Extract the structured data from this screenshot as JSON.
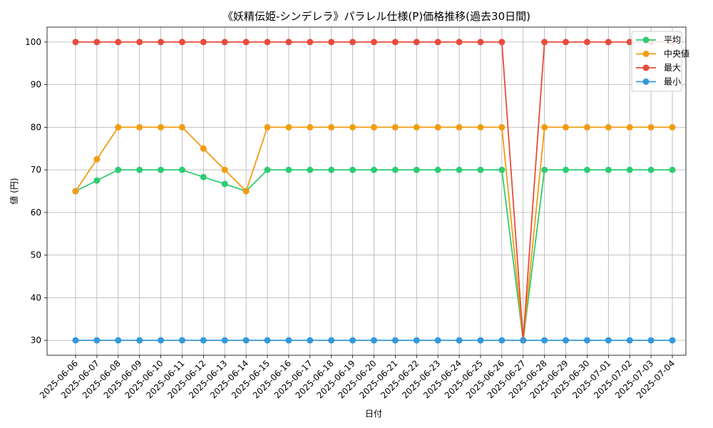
{
  "chart_data": {
    "type": "line",
    "title": "《妖精伝姫-シンデレラ》パラレル仕様(P)価格推移(過去30日間)",
    "xlabel": "日付",
    "ylabel": "値 (円)",
    "ylim": [
      26.5,
      103.5
    ],
    "yticks": [
      30,
      40,
      50,
      60,
      70,
      80,
      90,
      100
    ],
    "grid": true,
    "legend_position": "top-right",
    "x": [
      "2025-06-06",
      "2025-06-07",
      "2025-06-08",
      "2025-06-09",
      "2025-06-10",
      "2025-06-11",
      "2025-06-12",
      "2025-06-13",
      "2025-06-14",
      "2025-06-15",
      "2025-06-16",
      "2025-06-17",
      "2025-06-18",
      "2025-06-19",
      "2025-06-20",
      "2025-06-21",
      "2025-06-22",
      "2025-06-23",
      "2025-06-24",
      "2025-06-25",
      "2025-06-26",
      "2025-06-27",
      "2025-06-28",
      "2025-06-29",
      "2025-06-30",
      "2025-07-01",
      "2025-07-02",
      "2025-07-03",
      "2025-07-04"
    ],
    "series": [
      {
        "name": "平均",
        "color": "#2ecc71",
        "values": [
          65,
          67.5,
          70,
          70,
          70,
          70,
          68.3,
          66.7,
          65,
          70,
          70,
          70,
          70,
          70,
          70,
          70,
          70,
          70,
          70,
          70,
          70,
          30,
          70,
          70,
          70,
          70,
          70,
          70,
          70
        ]
      },
      {
        "name": "中央値",
        "color": "#f39c12",
        "values": [
          65,
          72.5,
          80,
          80,
          80,
          80,
          75,
          70,
          65,
          80,
          80,
          80,
          80,
          80,
          80,
          80,
          80,
          80,
          80,
          80,
          80,
          30,
          80,
          80,
          80,
          80,
          80,
          80,
          80
        ]
      },
      {
        "name": "最大",
        "color": "#e74c3c",
        "values": [
          100,
          100,
          100,
          100,
          100,
          100,
          100,
          100,
          100,
          100,
          100,
          100,
          100,
          100,
          100,
          100,
          100,
          100,
          100,
          100,
          100,
          30,
          100,
          100,
          100,
          100,
          100,
          100,
          100
        ]
      },
      {
        "name": "最小",
        "color": "#3498db",
        "values": [
          30,
          30,
          30,
          30,
          30,
          30,
          30,
          30,
          30,
          30,
          30,
          30,
          30,
          30,
          30,
          30,
          30,
          30,
          30,
          30,
          30,
          30,
          30,
          30,
          30,
          30,
          30,
          30,
          30
        ]
      }
    ]
  }
}
